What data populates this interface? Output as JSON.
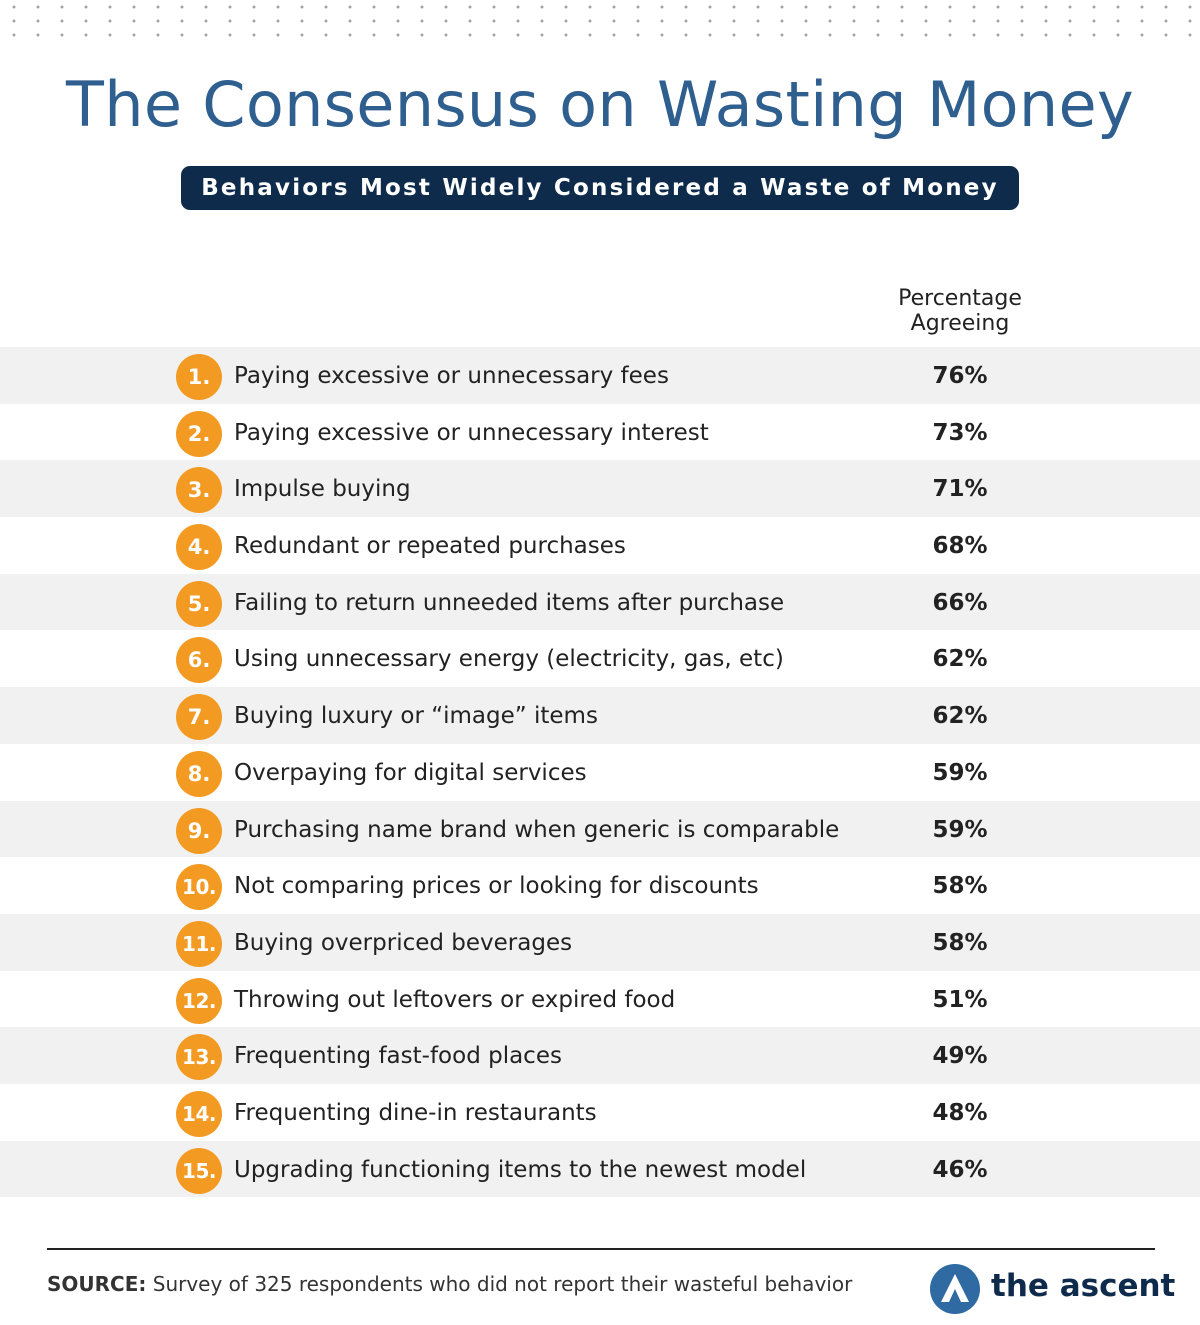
{
  "header": {
    "title": "The Consensus on Wasting Money",
    "subtitle": "Behaviors Most Widely Considered a Waste of Money"
  },
  "colors": {
    "title": "#2f5f8f",
    "banner": "#0e2b4c",
    "badge": "#f39a23",
    "row_shade": "#f1f1f1"
  },
  "chart_data": {
    "type": "table",
    "column_header": "Percentage Agreeing",
    "rows": [
      {
        "rank": "1.",
        "behavior": "Paying excessive or unnecessary fees",
        "value": "76%"
      },
      {
        "rank": "2.",
        "behavior": "Paying excessive or unnecessary interest",
        "value": "73%"
      },
      {
        "rank": "3.",
        "behavior": "Impulse buying",
        "value": "71%"
      },
      {
        "rank": "4.",
        "behavior": "Redundant or repeated purchases",
        "value": "68%"
      },
      {
        "rank": "5.",
        "behavior": "Failing to return unneeded items after purchase",
        "value": "66%"
      },
      {
        "rank": "6.",
        "behavior": "Using unnecessary energy (electricity, gas, etc)",
        "value": "62%"
      },
      {
        "rank": "7.",
        "behavior": "Buying luxury or “image” items",
        "value": "62%"
      },
      {
        "rank": "8.",
        "behavior": "Overpaying for digital services",
        "value": "59%"
      },
      {
        "rank": "9.",
        "behavior": "Purchasing name brand when generic is comparable",
        "value": "59%"
      },
      {
        "rank": "10.",
        "behavior": "Not comparing prices or looking for discounts",
        "value": "58%"
      },
      {
        "rank": "11.",
        "behavior": "Buying overpriced beverages",
        "value": "58%"
      },
      {
        "rank": "12.",
        "behavior": "Throwing out leftovers or expired food",
        "value": "51%"
      },
      {
        "rank": "13.",
        "behavior": "Frequenting fast-food places",
        "value": "49%"
      },
      {
        "rank": "14.",
        "behavior": "Frequenting dine-in restaurants",
        "value": "48%"
      },
      {
        "rank": "15.",
        "behavior": "Upgrading functioning items to the newest model",
        "value": "46%"
      }
    ]
  },
  "footer": {
    "source_label": "SOURCE:",
    "source_text": "Survey of 325 respondents who did not report their wasteful behavior",
    "logo_text": "the ascent",
    "logo_icon": "ascent-logo-icon"
  }
}
